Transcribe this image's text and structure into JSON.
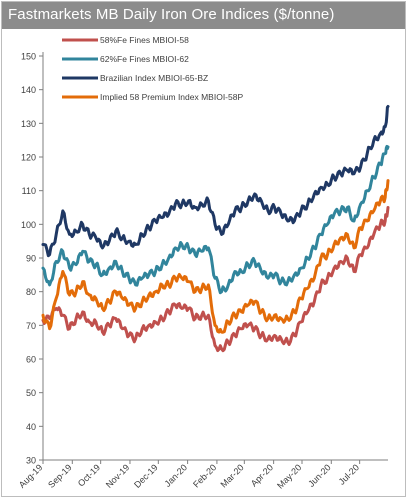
{
  "title": "Fastmarkets MB Daily Iron Ore Indices ($/tonne)",
  "chart_data": {
    "type": "line",
    "title": "Fastmarkets MB Daily Iron Ore Indices ($/tonne)",
    "xlabel": "",
    "ylabel": "",
    "ylim": [
      30,
      150
    ],
    "yticks": [
      30,
      40,
      50,
      60,
      70,
      80,
      90,
      100,
      110,
      120,
      130,
      140,
      150
    ],
    "grid": false,
    "legend_position": "top-left",
    "x_tick_labels": [
      "Aug-19",
      "Sep-19",
      "Oct-19",
      "Nov-19",
      "Dec-19",
      "Jan-20",
      "Feb-20",
      "Mar-20",
      "Apr-20",
      "May-20",
      "Jun-20",
      "Jul-20"
    ],
    "x_range": [
      "2019-08-01",
      "2020-07-31"
    ],
    "series": [
      {
        "name": "58%Fe Fines MBIOI-58",
        "color": "#c0504d",
        "points": [
          [
            "2019-08-01",
            71.5
          ],
          [
            "2019-08-08",
            72
          ],
          [
            "2019-08-15",
            75
          ],
          [
            "2019-08-22",
            73
          ],
          [
            "2019-08-29",
            69
          ],
          [
            "2019-09-05",
            72
          ],
          [
            "2019-09-12",
            74
          ],
          [
            "2019-09-19",
            71
          ],
          [
            "2019-09-26",
            71
          ],
          [
            "2019-10-03",
            68
          ],
          [
            "2019-10-10",
            70
          ],
          [
            "2019-10-17",
            72
          ],
          [
            "2019-10-24",
            69
          ],
          [
            "2019-10-31",
            67
          ],
          [
            "2019-11-07",
            66
          ],
          [
            "2019-11-14",
            69
          ],
          [
            "2019-11-21",
            70
          ],
          [
            "2019-11-28",
            71
          ],
          [
            "2019-12-05",
            72
          ],
          [
            "2019-12-12",
            74
          ],
          [
            "2019-12-19",
            76
          ],
          [
            "2019-12-26",
            75
          ],
          [
            "2020-01-02",
            75
          ],
          [
            "2020-01-09",
            72
          ],
          [
            "2020-01-16",
            73
          ],
          [
            "2020-01-23",
            73
          ],
          [
            "2020-01-30",
            64
          ],
          [
            "2020-02-06",
            63
          ],
          [
            "2020-02-13",
            65
          ],
          [
            "2020-02-20",
            67
          ],
          [
            "2020-02-27",
            69
          ],
          [
            "2020-03-05",
            70
          ],
          [
            "2020-03-12",
            69
          ],
          [
            "2020-03-19",
            67
          ],
          [
            "2020-03-26",
            66
          ],
          [
            "2020-04-02",
            67
          ],
          [
            "2020-04-09",
            66
          ],
          [
            "2020-04-16",
            65
          ],
          [
            "2020-04-23",
            67
          ],
          [
            "2020-04-30",
            71
          ],
          [
            "2020-05-07",
            74
          ],
          [
            "2020-05-14",
            77
          ],
          [
            "2020-05-21",
            82
          ],
          [
            "2020-05-28",
            84
          ],
          [
            "2020-06-04",
            87
          ],
          [
            "2020-06-11",
            89
          ],
          [
            "2020-06-18",
            90
          ],
          [
            "2020-06-25",
            86
          ],
          [
            "2020-07-02",
            91
          ],
          [
            "2020-07-09",
            93
          ],
          [
            "2020-07-16",
            97
          ],
          [
            "2020-07-23",
            100
          ],
          [
            "2020-07-28",
            101
          ],
          [
            "2020-07-31",
            105
          ]
        ]
      },
      {
        "name": "62%Fe Fines MBIOI-62",
        "color": "#31859c",
        "points": [
          [
            "2019-08-01",
            87
          ],
          [
            "2019-08-08",
            82
          ],
          [
            "2019-08-15",
            89
          ],
          [
            "2019-08-22",
            92
          ],
          [
            "2019-08-29",
            87
          ],
          [
            "2019-09-05",
            88
          ],
          [
            "2019-09-12",
            92
          ],
          [
            "2019-09-19",
            89
          ],
          [
            "2019-09-26",
            88
          ],
          [
            "2019-10-03",
            85
          ],
          [
            "2019-10-10",
            87
          ],
          [
            "2019-10-17",
            89
          ],
          [
            "2019-10-24",
            86
          ],
          [
            "2019-10-31",
            84
          ],
          [
            "2019-11-07",
            82
          ],
          [
            "2019-11-14",
            84
          ],
          [
            "2019-11-21",
            85
          ],
          [
            "2019-11-28",
            86
          ],
          [
            "2019-12-05",
            88
          ],
          [
            "2019-12-12",
            90
          ],
          [
            "2019-12-19",
            93
          ],
          [
            "2019-12-26",
            94
          ],
          [
            "2020-01-02",
            93
          ],
          [
            "2020-01-09",
            91
          ],
          [
            "2020-01-16",
            92
          ],
          [
            "2020-01-23",
            93
          ],
          [
            "2020-01-30",
            84
          ],
          [
            "2020-02-06",
            80
          ],
          [
            "2020-02-13",
            82
          ],
          [
            "2020-02-20",
            86
          ],
          [
            "2020-02-27",
            86
          ],
          [
            "2020-03-05",
            88
          ],
          [
            "2020-03-12",
            89
          ],
          [
            "2020-03-19",
            86
          ],
          [
            "2020-03-26",
            84
          ],
          [
            "2020-04-02",
            85
          ],
          [
            "2020-04-09",
            83
          ],
          [
            "2020-04-16",
            83
          ],
          [
            "2020-04-23",
            85
          ],
          [
            "2020-04-30",
            87
          ],
          [
            "2020-05-07",
            90
          ],
          [
            "2020-05-14",
            93
          ],
          [
            "2020-05-21",
            97
          ],
          [
            "2020-05-28",
            100
          ],
          [
            "2020-06-04",
            103
          ],
          [
            "2020-06-11",
            104
          ],
          [
            "2020-06-18",
            105
          ],
          [
            "2020-06-25",
            101
          ],
          [
            "2020-07-02",
            106
          ],
          [
            "2020-07-09",
            110
          ],
          [
            "2020-07-16",
            114
          ],
          [
            "2020-07-23",
            118
          ],
          [
            "2020-07-28",
            121
          ],
          [
            "2020-07-31",
            123
          ]
        ]
      },
      {
        "name": "Brazilian Index MBIOI-65-BZ",
        "color": "#1f3864",
        "points": [
          [
            "2019-08-01",
            94
          ],
          [
            "2019-08-08",
            91
          ],
          [
            "2019-08-15",
            97
          ],
          [
            "2019-08-22",
            104
          ],
          [
            "2019-08-29",
            97
          ],
          [
            "2019-09-05",
            98
          ],
          [
            "2019-09-12",
            100
          ],
          [
            "2019-09-19",
            97
          ],
          [
            "2019-09-26",
            96
          ],
          [
            "2019-10-03",
            93
          ],
          [
            "2019-10-10",
            95
          ],
          [
            "2019-10-17",
            98
          ],
          [
            "2019-10-24",
            96
          ],
          [
            "2019-10-31",
            95
          ],
          [
            "2019-11-07",
            94
          ],
          [
            "2019-11-14",
            97
          ],
          [
            "2019-11-21",
            99
          ],
          [
            "2019-11-28",
            101
          ],
          [
            "2019-12-05",
            102
          ],
          [
            "2019-12-12",
            103
          ],
          [
            "2019-12-19",
            106
          ],
          [
            "2019-12-26",
            106
          ],
          [
            "2020-01-02",
            107
          ],
          [
            "2020-01-09",
            105
          ],
          [
            "2020-01-16",
            106
          ],
          [
            "2020-01-23",
            107
          ],
          [
            "2020-01-30",
            100
          ],
          [
            "2020-02-06",
            97
          ],
          [
            "2020-02-13",
            100
          ],
          [
            "2020-02-20",
            104
          ],
          [
            "2020-02-27",
            105
          ],
          [
            "2020-03-05",
            107
          ],
          [
            "2020-03-12",
            109
          ],
          [
            "2020-03-19",
            107
          ],
          [
            "2020-03-26",
            104
          ],
          [
            "2020-04-02",
            105
          ],
          [
            "2020-04-09",
            103
          ],
          [
            "2020-04-16",
            101
          ],
          [
            "2020-04-23",
            101
          ],
          [
            "2020-04-30",
            104
          ],
          [
            "2020-05-07",
            106
          ],
          [
            "2020-05-14",
            109
          ],
          [
            "2020-05-21",
            111
          ],
          [
            "2020-05-28",
            112
          ],
          [
            "2020-06-04",
            114
          ],
          [
            "2020-06-11",
            115
          ],
          [
            "2020-06-18",
            116
          ],
          [
            "2020-06-25",
            115
          ],
          [
            "2020-07-02",
            117
          ],
          [
            "2020-07-09",
            121
          ],
          [
            "2020-07-16",
            125
          ],
          [
            "2020-07-23",
            127
          ],
          [
            "2020-07-28",
            129
          ],
          [
            "2020-07-31",
            135
          ]
        ]
      },
      {
        "name": "Implied 58 Premium Index MBIOI-58P",
        "color": "#e36c09",
        "points": [
          [
            "2019-08-01",
            73
          ],
          [
            "2019-08-08",
            69
          ],
          [
            "2019-08-15",
            78
          ],
          [
            "2019-08-22",
            86
          ],
          [
            "2019-08-29",
            79
          ],
          [
            "2019-09-05",
            80
          ],
          [
            "2019-09-12",
            83
          ],
          [
            "2019-09-19",
            79
          ],
          [
            "2019-09-26",
            78
          ],
          [
            "2019-10-03",
            75
          ],
          [
            "2019-10-10",
            77
          ],
          [
            "2019-10-17",
            80
          ],
          [
            "2019-10-24",
            78
          ],
          [
            "2019-10-31",
            76
          ],
          [
            "2019-11-07",
            75
          ],
          [
            "2019-11-14",
            77
          ],
          [
            "2019-11-21",
            79
          ],
          [
            "2019-11-28",
            80
          ],
          [
            "2019-12-05",
            82
          ],
          [
            "2019-12-12",
            82
          ],
          [
            "2019-12-19",
            84
          ],
          [
            "2019-12-26",
            84
          ],
          [
            "2020-01-02",
            83
          ],
          [
            "2020-01-09",
            80
          ],
          [
            "2020-01-16",
            81
          ],
          [
            "2020-01-23",
            82
          ],
          [
            "2020-01-30",
            70
          ],
          [
            "2020-02-06",
            68
          ],
          [
            "2020-02-13",
            71
          ],
          [
            "2020-02-20",
            73
          ],
          [
            "2020-02-27",
            74
          ],
          [
            "2020-03-05",
            76
          ],
          [
            "2020-03-12",
            77
          ],
          [
            "2020-03-19",
            74
          ],
          [
            "2020-03-26",
            72
          ],
          [
            "2020-04-02",
            73
          ],
          [
            "2020-04-09",
            72
          ],
          [
            "2020-04-16",
            72
          ],
          [
            "2020-04-23",
            74
          ],
          [
            "2020-04-30",
            78
          ],
          [
            "2020-05-07",
            81
          ],
          [
            "2020-05-14",
            84
          ],
          [
            "2020-05-21",
            90
          ],
          [
            "2020-05-28",
            91
          ],
          [
            "2020-06-04",
            94
          ],
          [
            "2020-06-11",
            96
          ],
          [
            "2020-06-18",
            97
          ],
          [
            "2020-06-25",
            93
          ],
          [
            "2020-07-02",
            99
          ],
          [
            "2020-07-09",
            101
          ],
          [
            "2020-07-16",
            104
          ],
          [
            "2020-07-23",
            107
          ],
          [
            "2020-07-28",
            108
          ],
          [
            "2020-07-31",
            113
          ]
        ]
      }
    ]
  }
}
